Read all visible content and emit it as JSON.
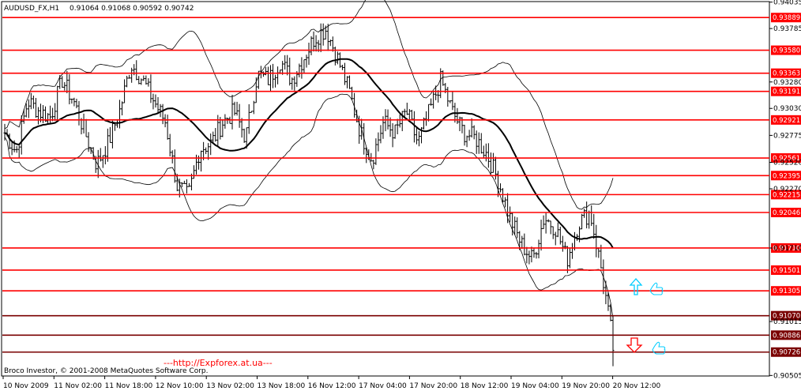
{
  "header": {
    "symbol": "AUDUSD_FX,H1",
    "ohlc": "0.91064 0.91068 0.90592 0.90742"
  },
  "footer": {
    "copyright": "Broco Investor, © 2001-2008 MetaQuotes Software Corp.",
    "watermark": "---http://Expforex.at.ua---"
  },
  "colors": {
    "level_line": "#ff0000",
    "level_line_dark": "#7a0000",
    "bar": "#000000",
    "arrow_up": "#00ccff",
    "arrow_down": "#ff0000",
    "hand": "#00ccff"
  },
  "icons": {
    "up": "arrow-up-icon",
    "down": "arrow-down-icon",
    "hand": "thumb-hand-icon"
  },
  "chart_data": {
    "type": "candlestick",
    "title": "",
    "xlabel": "",
    "ylabel": "",
    "ylim": [
      0.905,
      0.9404
    ],
    "grid": false,
    "y_ticks": [
      "0.94035",
      "0.93785",
      "0.93280",
      "0.93030",
      "0.92775",
      "0.92520",
      "0.92270",
      "0.91710",
      "0.91015",
      "0.90505"
    ],
    "x_ticks": [
      "10 Nov 2009",
      "11 Nov 02:00",
      "11 Nov 18:00",
      "12 Nov 10:00",
      "13 Nov 02:00",
      "13 Nov 18:00",
      "16 Nov 12:00",
      "17 Nov 04:00",
      "17 Nov 20:00",
      "18 Nov 12:00",
      "19 Nov 04:00",
      "19 Nov 20:00",
      "20 Nov 12:00"
    ],
    "levels": [
      {
        "label": "0.93889",
        "value": 0.93889
      },
      {
        "label": "0.93580",
        "value": 0.9358
      },
      {
        "label": "0.93363",
        "value": 0.93363
      },
      {
        "label": "0.93191",
        "value": 0.93191
      },
      {
        "label": "0.92921",
        "value": 0.92921
      },
      {
        "label": "0.92561",
        "value": 0.92561
      },
      {
        "label": "0.92395",
        "value": 0.92395
      },
      {
        "label": "0.92215",
        "value": 0.92215
      },
      {
        "label": "0.92046",
        "value": 0.92046
      },
      {
        "label": "0.91710",
        "value": 0.9171
      },
      {
        "label": "0.91501",
        "value": 0.91501
      },
      {
        "label": "0.91305",
        "value": 0.91305
      },
      {
        "label": "0.91070",
        "value": 0.9107
      },
      {
        "label": "0.90886",
        "value": 0.90886
      },
      {
        "label": "0.90726",
        "value": 0.90726
      }
    ],
    "close_path": [
      0.928,
      0.9262,
      0.931,
      0.93,
      0.9295,
      0.933,
      0.931,
      0.928,
      0.925,
      0.927,
      0.93,
      0.9345,
      0.933,
      0.931,
      0.929,
      0.923,
      0.922,
      0.9265,
      0.927,
      0.929,
      0.93,
      0.9275,
      0.9335,
      0.933,
      0.9348,
      0.933,
      0.935,
      0.937,
      0.9378,
      0.935,
      0.932,
      0.928,
      0.9255,
      0.929,
      0.928,
      0.93,
      0.927,
      0.93,
      0.933,
      0.93,
      0.928,
      0.9275,
      0.926,
      0.9235,
      0.92,
      0.9175,
      0.916,
      0.92,
      0.919,
      0.916,
      0.9195,
      0.9205,
      0.915,
      0.908
    ]
  }
}
